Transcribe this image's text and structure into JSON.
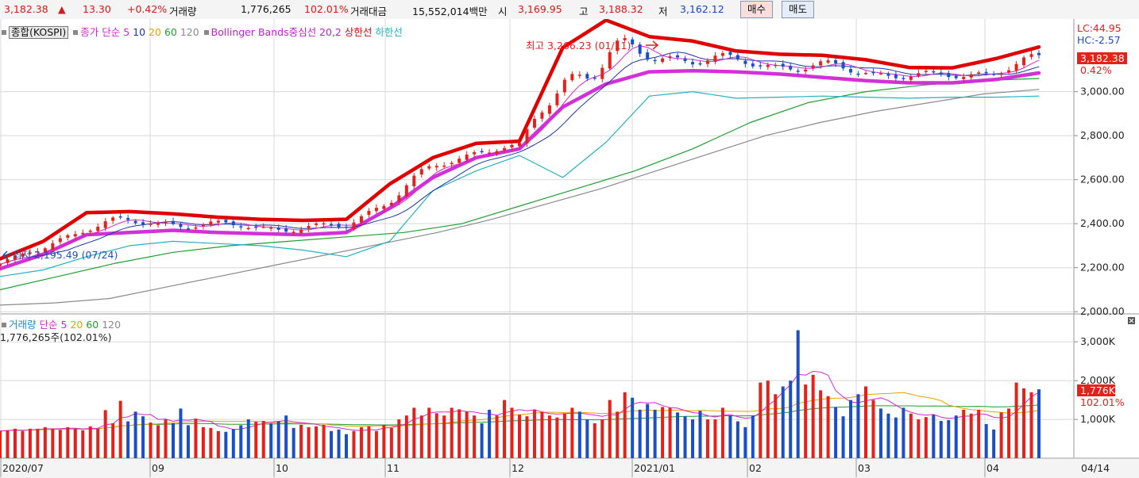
{
  "topbar": {
    "price": "3,182.38",
    "up_arrow": "▲",
    "change": "13.30",
    "change_pct": "+0.42%",
    "volume_label": "거래량",
    "volume_value": "1,776,265",
    "volume_pct": "102.01%",
    "amount_label": "거래대금",
    "amount_value": "15,552,014백만",
    "open_label": "시",
    "open_value": "3,169.95",
    "high_label": "고",
    "high_value": "3,188.32",
    "low_label": "저",
    "low_value": "3,162.12",
    "buy_button": "매수",
    "sell_button": "매도"
  },
  "price_legend": {
    "index_button": "종합(KOSPI)",
    "ma_label": "종가 단순",
    "ma5": "5",
    "ma10": "10",
    "ma20": "20",
    "ma60": "60",
    "ma120": "120",
    "bb_label": "Bollinger Bands중심선 20,2",
    "bb_upper": "상한선",
    "bb_lower": "하한선"
  },
  "volume_legend": {
    "label": "거래량",
    "ma_label": "단순",
    "ma5": "5",
    "ma20": "20",
    "ma60": "60",
    "ma120": "120",
    "value_text": "1,776,265주(102.01%)"
  },
  "annotations": {
    "high": "최고 3,266.23 (01/11)",
    "low": "최저 2,195.49 (07/24)"
  },
  "right_axis": {
    "lc": "LC:44.95",
    "hc": "HC:-2.57",
    "current_price_tag": "3,182.38",
    "current_pct": "0.42%",
    "current_volume_tag": "1,776K",
    "current_volume_pct": "102.01%"
  },
  "colors": {
    "up": "#e4211b",
    "down": "#1b4fc6",
    "bb_upper": "#e00000",
    "bb_mid": "#d230d8",
    "bb_lower": "#22b2c2",
    "ma5": "#d228d2",
    "ma10": "#1a36a8",
    "ma20": "#e8a000",
    "ma60": "#1e9e32",
    "ma120": "#8a8a8a"
  },
  "chart_data": [
    {
      "type": "candlestick",
      "title": "종합(KOSPI)",
      "yticks": [
        "3,000.00",
        "2,800.00",
        "2,600.00",
        "2,400.00",
        "2,200.00",
        "2,000.00"
      ],
      "ylim": [
        1990,
        3330
      ],
      "x_labels": [
        "2020/07",
        "09",
        "10",
        "11",
        "12",
        "2021/01",
        "02",
        "03",
        "04",
        "04/14"
      ],
      "period": "2020/07/10 - 2021/04/14 (daily)",
      "series": [
        {
          "name": "Bollinger Bands 상한선",
          "values": [
            2240,
            2320,
            2450,
            2455,
            2445,
            2430,
            2420,
            2415,
            2420,
            2580,
            2700,
            2765,
            2775,
            3200,
            3325,
            3250,
            3230,
            3185,
            3170,
            3165,
            3145,
            3110,
            3108,
            3150,
            3203
          ]
        },
        {
          "name": "Bollinger Bands 중심선 20,2",
          "values": [
            2195,
            2260,
            2350,
            2360,
            2370,
            2360,
            2355,
            2350,
            2360,
            2470,
            2610,
            2700,
            2740,
            2930,
            3035,
            3090,
            3095,
            3090,
            3080,
            3065,
            3050,
            3040,
            3040,
            3055,
            3085
          ]
        },
        {
          "name": "하한선",
          "values": [
            2160,
            2190,
            2250,
            2300,
            2320,
            2310,
            2300,
            2280,
            2250,
            2320,
            2550,
            2640,
            2710,
            2610,
            2770,
            2980,
            3000,
            2970,
            2975,
            2980,
            2975,
            2970,
            2975,
            2975,
            2980
          ]
        },
        {
          "name": "120",
          "values": [
            2030,
            2040,
            2060,
            2110,
            2160,
            2210,
            2260,
            2310,
            2360,
            2420,
            2490,
            2560,
            2640,
            2720,
            2800,
            2860,
            2910,
            2950,
            2990,
            3010
          ]
        },
        {
          "name": "60",
          "values": [
            2100,
            2160,
            2220,
            2270,
            2300,
            2320,
            2340,
            2360,
            2400,
            2480,
            2560,
            2640,
            2740,
            2860,
            2950,
            3000,
            3030,
            3050,
            3060
          ]
        }
      ],
      "annotations": [
        {
          "text": "최고 3,266.23 (01/11)",
          "date": "2021/01/11",
          "value": 3266.23
        },
        {
          "text": "최저 2,195.49 (07/24)",
          "date": "2020/07/24",
          "value": 2195.49
        }
      ]
    },
    {
      "type": "bar",
      "title": "거래량",
      "yticks": [
        "3,000K",
        "2,000K",
        "1,000K"
      ],
      "ylim": [
        0,
        3700
      ],
      "values_k": [
        700,
        720,
        760,
        700,
        760,
        760,
        800,
        760,
        730,
        800,
        760,
        720,
        820,
        760,
        1240,
        900,
        1480,
        950,
        1200,
        1080,
        920,
        850,
        1000,
        900,
        1280,
        850,
        1020,
        800,
        780,
        700,
        680,
        750,
        850,
        1000,
        940,
        960,
        900,
        950,
        1100,
        780,
        860,
        800,
        820,
        860,
        700,
        740,
        620,
        700,
        800,
        820,
        700,
        860,
        780,
        1000,
        1100,
        1300,
        1100,
        1300,
        1160,
        1100,
        1300,
        1260,
        1200,
        1100,
        900,
        1250,
        1100,
        1500,
        1300,
        1120,
        1080,
        1250,
        1200,
        1100,
        1050,
        1150,
        1300,
        1200,
        1000,
        900,
        1000,
        1500,
        1200,
        1700,
        1560,
        1250,
        1400,
        1250,
        1320,
        1300,
        1180,
        1080,
        1000,
        1220,
        1000,
        1000,
        1300,
        1100,
        950,
        800,
        1100,
        1950,
        2000,
        1650,
        1850,
        2000,
        3300,
        1900,
        2150,
        1750,
        1600,
        1320,
        1080,
        1500,
        1650,
        1850,
        1500,
        1280,
        1150,
        1050,
        1300,
        1150,
        1000,
        1060,
        1120,
        960,
        980,
        1100,
        1250,
        1150,
        1250,
        880,
        740,
        1180,
        1280,
        1950,
        1800,
        1700,
        1776
      ],
      "volume_up_pattern": "alternating (see marks)"
    }
  ]
}
